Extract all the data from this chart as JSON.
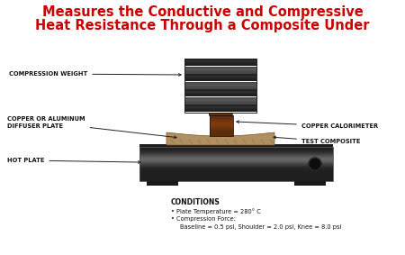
{
  "title_line1": "Measures the Conductive and Compressive",
  "title_line2": "Heat Resistance Through a Composite Under",
  "title_color": "#cc0000",
  "title_fontsize": 10.5,
  "bg_color": "#ffffff",
  "labels": {
    "compression_weight": "COMPRESSION WEIGHT",
    "copper_al": "COPPER OR ALUMINUM\nDIFFUSER PLATE",
    "hot_plate": "HOT PLATE",
    "copper_cal": "COPPER CALORIMETER",
    "test_composite": "TEST COMPOSITE",
    "conditions_title": "CONDITIONS",
    "cond1": "• Plate Temperature = 280° C",
    "cond2": "• Compression Force:",
    "cond3": "Baseline = 0.5 psi, Shoulder = 2.0 psi, Knee = 8.0 psi"
  },
  "label_fontsize": 4.8,
  "label_color": "#111111",
  "fig_width": 4.5,
  "fig_height": 2.83,
  "dpi": 100
}
